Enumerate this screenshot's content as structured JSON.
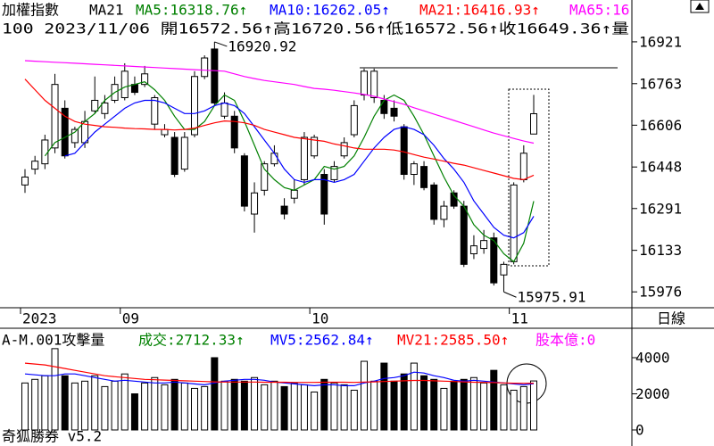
{
  "footer": "奇狐勝券 v5.2",
  "chart_data": [
    {
      "type": "candlestick",
      "title": "加權指數",
      "subtitle": "MA21",
      "info": "100 2023/11/06 開16572.56↑高16720.56↑低16572.56↑收16649.36↑量",
      "period": "日線",
      "categories": [
        "2023",
        null,
        null,
        null,
        null,
        null,
        null,
        null,
        null,
        null,
        "09",
        null,
        null,
        null,
        null,
        null,
        null,
        null,
        null,
        null,
        null,
        null,
        null,
        null,
        null,
        null,
        null,
        null,
        null,
        "10",
        null,
        null,
        null,
        null,
        null,
        null,
        null,
        null,
        null,
        null,
        null,
        null,
        null,
        null,
        null,
        null,
        null,
        null,
        null,
        "11",
        null,
        null
      ],
      "open": [
        16380,
        16440,
        16460,
        16520,
        16670,
        16540,
        16540,
        16660,
        16650,
        16700,
        16710,
        16760,
        16760,
        16610,
        16570,
        16560,
        16440,
        16570,
        16790,
        16894,
        16640,
        16640,
        16490,
        16270,
        16360,
        16460,
        16300,
        16330,
        16400,
        16490,
        16420,
        16400,
        16490,
        16570,
        16720,
        16710,
        16700,
        16670,
        16600,
        16420,
        16450,
        16380,
        16250,
        16350,
        16300,
        16120,
        16140,
        16180,
        16040,
        16090,
        16400,
        16572.56
      ],
      "high": [
        16440,
        16490,
        16570,
        16800,
        16700,
        16600,
        16660,
        16790,
        16720,
        16790,
        16840,
        16790,
        16830,
        16720,
        16610,
        16580,
        16580,
        16810,
        16870,
        16920.92,
        16730,
        16660,
        16500,
        16390,
        16470,
        16530,
        16330,
        16400,
        16580,
        16570,
        16440,
        16470,
        16560,
        16700,
        16820,
        16820,
        16720,
        16700,
        16610,
        16470,
        16470,
        16390,
        16320,
        16360,
        16320,
        16190,
        16210,
        16200,
        16090,
        16390,
        16530,
        16720.56
      ],
      "low": [
        16350,
        16420,
        16440,
        16500,
        16480,
        16520,
        16520,
        16650,
        16630,
        16690,
        16700,
        16720,
        16750,
        16590,
        16560,
        16410,
        16430,
        16560,
        16780,
        16680,
        16630,
        16500,
        16280,
        16200,
        16340,
        16450,
        16250,
        16310,
        16380,
        16480,
        16230,
        16390,
        16480,
        16560,
        16700,
        16690,
        16630,
        16620,
        16400,
        16380,
        16360,
        16230,
        16220,
        16290,
        16070,
        16100,
        16120,
        16000,
        15975.91,
        16080,
        16390,
        16572.56
      ],
      "close": [
        16410,
        16470,
        16550,
        16760,
        16490,
        16590,
        16620,
        16700,
        16690,
        16760,
        16810,
        16730,
        16800,
        16710,
        16590,
        16420,
        16560,
        16790,
        16860,
        16690,
        16690,
        16520,
        16300,
        16350,
        16460,
        16500,
        16270,
        16360,
        16560,
        16560,
        16270,
        16450,
        16540,
        16680,
        16810,
        16810,
        16650,
        16640,
        16420,
        16460,
        16370,
        16250,
        16300,
        16300,
        16080,
        16150,
        16170,
        16010,
        16080,
        16380,
        16500,
        16649.36
      ],
      "series": [
        {
          "name": "MA5:16318.76↑",
          "color": "#008000",
          "values": [
            null,
            null,
            16490,
            16540,
            16560,
            16580,
            16620,
            16650,
            16700,
            16730,
            16750,
            16760,
            16770,
            16740,
            16700,
            16640,
            16590,
            16590,
            16620,
            16680,
            16720,
            16700,
            16620,
            16530,
            16440,
            16400,
            16370,
            16360,
            16380,
            16400,
            16450,
            16440,
            16450,
            16490,
            16560,
            16640,
            16700,
            16720,
            16700,
            16640,
            16570,
            16490,
            16410,
            16340,
            16300,
            16230,
            16190,
            16170,
            16120,
            16090,
            16160,
            16318.76
          ]
        },
        {
          "name": "MA10:16262.05↑",
          "color": "#0000ff",
          "values": [
            null,
            null,
            null,
            null,
            16490,
            16500,
            16540,
            16580,
            16610,
            16640,
            16670,
            16690,
            16700,
            16700,
            16690,
            16670,
            16650,
            16650,
            16660,
            16680,
            16690,
            16680,
            16650,
            16600,
            16550,
            16500,
            16440,
            16400,
            16390,
            16400,
            16400,
            16390,
            16400,
            16420,
            16470,
            16520,
            16560,
            16590,
            16600,
            16590,
            16570,
            16530,
            16480,
            16440,
            16390,
            16320,
            16270,
            16220,
            16190,
            16180,
            16200,
            16262.05
          ]
        },
        {
          "name": "MA21:16416.93↑",
          "color": "#ff0000",
          "values": [
            16780,
            16740,
            16700,
            16670,
            16640,
            16620,
            16610,
            16605,
            16600,
            16598,
            16595,
            16593,
            16592,
            16590,
            16590,
            16588,
            16590,
            16595,
            16605,
            16615,
            16622,
            16620,
            16615,
            16605,
            16590,
            16580,
            16570,
            16560,
            16555,
            16550,
            16545,
            16535,
            16528,
            16520,
            16515,
            16515,
            16515,
            16512,
            16505,
            16495,
            16485,
            16478,
            16470,
            16462,
            16455,
            16445,
            16435,
            16425,
            16415,
            16405,
            16400,
            16416.93
          ]
        },
        {
          "name": "MA65:16",
          "color": "#ff00ff",
          "values": [
            16850,
            16848,
            16846,
            16844,
            16842,
            16840,
            16838,
            16836,
            16834,
            16832,
            16830,
            16828,
            16826,
            16824,
            16822,
            16820,
            16818,
            16816,
            16814,
            16812,
            16810,
            16800,
            16790,
            16782,
            16775,
            16770,
            16765,
            16760,
            16752,
            16745,
            16742,
            16738,
            16733,
            16728,
            16722,
            16715,
            16705,
            16695,
            16685,
            16672,
            16660,
            16648,
            16636,
            16624,
            16612,
            16600,
            16588,
            16576,
            16566,
            16556,
            16546,
            16538
          ]
        }
      ],
      "ylim": [
        15916,
        17005
      ],
      "yticks": [
        16921,
        16763,
        16606,
        16448,
        16291,
        16133,
        15976
      ],
      "annotations": [
        {
          "value": 16920.92,
          "label": "16920.92"
        },
        {
          "value": 15975.91,
          "label": "15975.91"
        }
      ]
    },
    {
      "type": "bar",
      "title": "A-M.001攻擊量",
      "capital_label": "股本億:0",
      "series": [
        {
          "name": "成交:2712.33↑",
          "color": "#008000",
          "values": [
            2600,
            2800,
            3000,
            4500,
            3000,
            2600,
            2700,
            3000,
            2400,
            2700,
            3100,
            2000,
            2600,
            2900,
            2500,
            2800,
            2600,
            2300,
            2400,
            4000,
            2700,
            2800,
            2700,
            2900,
            2500,
            2700,
            2400,
            2600,
            2500,
            2100,
            2800,
            2600,
            2500,
            2200,
            3800,
            2700,
            3700,
            2700,
            3100,
            3700,
            3000,
            2800,
            2300,
            2700,
            2800,
            2900,
            2600,
            3300,
            2500,
            2200,
            2400,
            2712.33
          ]
        },
        {
          "name": "MV5:2562.84↑",
          "color": "#0000ff",
          "values": [
            3100,
            3050,
            3000,
            3000,
            3100,
            3100,
            3000,
            2900,
            2800,
            2700,
            2750,
            2700,
            2650,
            2600,
            2600,
            2650,
            2600,
            2550,
            2500,
            2600,
            2700,
            2750,
            2800,
            2800,
            2750,
            2650,
            2600,
            2550,
            2500,
            2450,
            2500,
            2500,
            2450,
            2450,
            2600,
            2700,
            2850,
            2900,
            3000,
            3200,
            3150,
            3000,
            2900,
            2750,
            2700,
            2750,
            2700,
            2650,
            2600,
            2550,
            2500,
            2562.84
          ]
        },
        {
          "name": "MV21:2585.50↑",
          "color": "#ff0000",
          "values": [
            3700,
            3650,
            3600,
            3500,
            3400,
            3300,
            3200,
            3100,
            3000,
            2950,
            2900,
            2850,
            2800,
            2780,
            2760,
            2740,
            2720,
            2700,
            2680,
            2660,
            2650,
            2650,
            2650,
            2650,
            2640,
            2640,
            2640,
            2630,
            2630,
            2630,
            2640,
            2640,
            2640,
            2630,
            2650,
            2660,
            2680,
            2700,
            2720,
            2740,
            2740,
            2720,
            2700,
            2680,
            2660,
            2640,
            2630,
            2620,
            2600,
            2590,
            2585,
            2585.5
          ]
        }
      ],
      "ylim": [
        -740,
        5530
      ],
      "yticks": [
        4000,
        2000,
        0
      ]
    }
  ]
}
